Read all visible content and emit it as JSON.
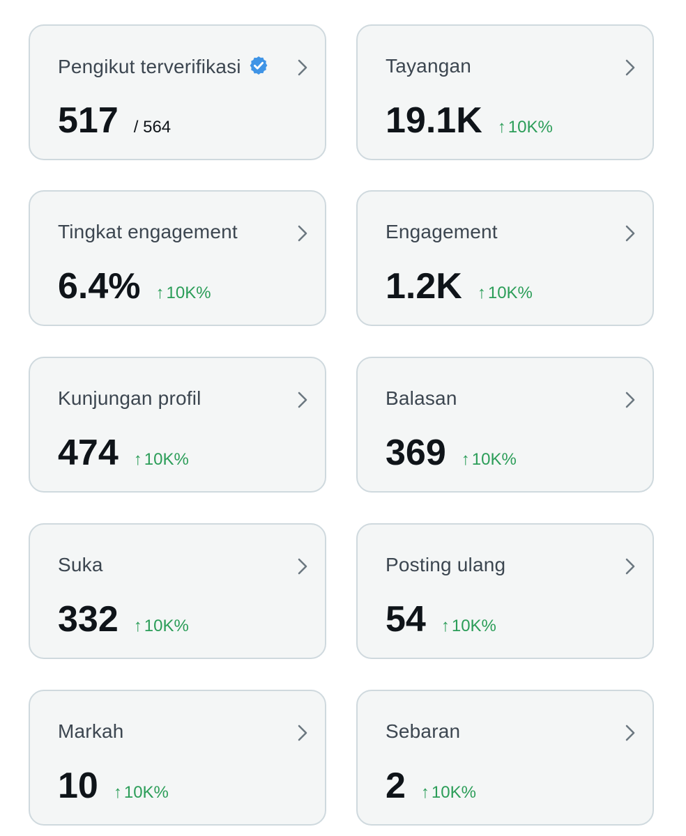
{
  "cards": [
    {
      "label": "Pengikut terverifikasi",
      "verified": true,
      "value": "517",
      "total": "/ 564",
      "delta": ""
    },
    {
      "label": "Tayangan",
      "value": "19.1K",
      "delta": "10K%"
    },
    {
      "label": "Tingkat engagement",
      "value": "6.4%",
      "delta": "10K%"
    },
    {
      "label": "Engagement",
      "value": "1.2K",
      "delta": "10K%"
    },
    {
      "label": "Kunjungan profil",
      "value": "474",
      "delta": "10K%"
    },
    {
      "label": "Balasan",
      "value": "369",
      "delta": "10K%"
    },
    {
      "label": "Suka",
      "value": "332",
      "delta": "10K%"
    },
    {
      "label": "Posting ulang",
      "value": "54",
      "delta": "10K%"
    },
    {
      "label": "Markah",
      "value": "10",
      "delta": "10K%"
    },
    {
      "label": "Sebaran",
      "value": "2",
      "delta": "10K%"
    }
  ],
  "icons": {
    "arrow": "↑",
    "chevron": "chevron-right-icon",
    "verified": "verified-badge-icon"
  },
  "colors": {
    "card_bg": "#f4f6f6",
    "border": "#cfd9de",
    "value": "#0f1419",
    "label": "#3c4650",
    "delta": "#2b9d58",
    "verified": "#3f94e6"
  }
}
